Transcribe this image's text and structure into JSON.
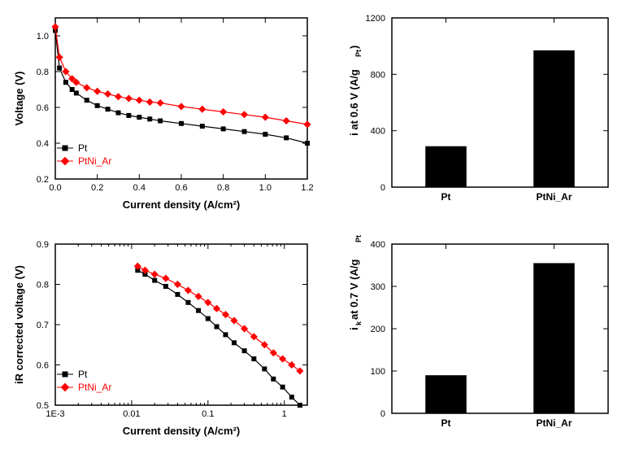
{
  "colors": {
    "background": "#ffffff",
    "axis": "#000000",
    "series_pt": "#000000",
    "series_ptni": "#ff0000",
    "bar_fill": "#000000",
    "tick": "#000000"
  },
  "chart_a": {
    "type": "scatter-line",
    "xlabel": "Current density  (A/cm²)",
    "ylabel": "Voltage (V)",
    "xlim": [
      0.0,
      1.2
    ],
    "xtick_step": 0.2,
    "ylim": [
      0.2,
      1.1
    ],
    "ytick_step": 0.2,
    "series": [
      {
        "name": "Pt",
        "color": "#000000",
        "marker": "square",
        "marker_size": 5,
        "line_width": 1.2,
        "x": [
          0.0,
          0.02,
          0.05,
          0.08,
          0.1,
          0.15,
          0.2,
          0.25,
          0.3,
          0.35,
          0.4,
          0.45,
          0.5,
          0.6,
          0.7,
          0.8,
          0.9,
          1.0,
          1.1,
          1.2
        ],
        "y": [
          1.03,
          0.82,
          0.74,
          0.7,
          0.68,
          0.64,
          0.61,
          0.59,
          0.57,
          0.555,
          0.545,
          0.535,
          0.525,
          0.51,
          0.495,
          0.48,
          0.465,
          0.45,
          0.43,
          0.4
        ]
      },
      {
        "name": "PtNi_Ar",
        "color": "#ff0000",
        "marker": "diamond",
        "marker_size": 5,
        "line_width": 1.2,
        "x": [
          0.0,
          0.02,
          0.05,
          0.08,
          0.1,
          0.15,
          0.2,
          0.25,
          0.3,
          0.35,
          0.4,
          0.45,
          0.5,
          0.6,
          0.7,
          0.8,
          0.9,
          1.0,
          1.1,
          1.2
        ],
        "y": [
          1.05,
          0.88,
          0.8,
          0.76,
          0.74,
          0.71,
          0.69,
          0.675,
          0.66,
          0.65,
          0.64,
          0.63,
          0.625,
          0.605,
          0.59,
          0.575,
          0.56,
          0.545,
          0.525,
          0.505
        ]
      }
    ],
    "legend_pos": "bottom-left"
  },
  "chart_b": {
    "type": "bar",
    "ylabel": "i  at 0.6 V (A/g_Pt)",
    "ylim": [
      0,
      1200
    ],
    "ytick_step": 400,
    "categories": [
      "Pt",
      "PtNi_Ar"
    ],
    "values": [
      290,
      970
    ],
    "bar_color": "#000000",
    "bar_width": 0.38
  },
  "chart_c": {
    "type": "scatter-line-logx",
    "xlabel": "Current density  (A/cm²)",
    "ylabel": "iR corrected voltage (V)",
    "xlim_log": [
      0.001,
      2.0
    ],
    "xticks_log": [
      0.001,
      0.01,
      0.1,
      1
    ],
    "xtick_labels": [
      "1E-3",
      "0.01",
      "0.1",
      "1"
    ],
    "ylim": [
      0.5,
      0.9
    ],
    "ytick_step": 0.1,
    "series": [
      {
        "name": "Pt",
        "color": "#000000",
        "marker": "square",
        "marker_size": 5,
        "line_width": 1.2,
        "x": [
          0.012,
          0.015,
          0.02,
          0.028,
          0.04,
          0.055,
          0.075,
          0.1,
          0.13,
          0.17,
          0.22,
          0.3,
          0.4,
          0.55,
          0.72,
          0.95,
          1.25,
          1.6
        ],
        "y": [
          0.835,
          0.825,
          0.81,
          0.795,
          0.775,
          0.755,
          0.735,
          0.715,
          0.695,
          0.675,
          0.655,
          0.635,
          0.615,
          0.59,
          0.565,
          0.545,
          0.52,
          0.5
        ]
      },
      {
        "name": "PtNi_Ar",
        "color": "#ff0000",
        "marker": "diamond",
        "marker_size": 5,
        "line_width": 1.2,
        "x": [
          0.012,
          0.015,
          0.02,
          0.028,
          0.04,
          0.055,
          0.075,
          0.1,
          0.13,
          0.17,
          0.22,
          0.3,
          0.4,
          0.55,
          0.72,
          0.95,
          1.25,
          1.6
        ],
        "y": [
          0.845,
          0.835,
          0.825,
          0.815,
          0.8,
          0.785,
          0.77,
          0.755,
          0.74,
          0.725,
          0.71,
          0.69,
          0.67,
          0.65,
          0.63,
          0.615,
          0.6,
          0.585
        ]
      }
    ],
    "legend_pos": "bottom-left"
  },
  "chart_d": {
    "type": "bar",
    "ylabel": "i_k  at 0.7 V (A/g_Pt)",
    "ylim": [
      0,
      400
    ],
    "ytick_step": 100,
    "categories": [
      "Pt",
      "PtNi_Ar"
    ],
    "values": [
      90,
      355
    ],
    "bar_color": "#000000",
    "bar_width": 0.38
  }
}
